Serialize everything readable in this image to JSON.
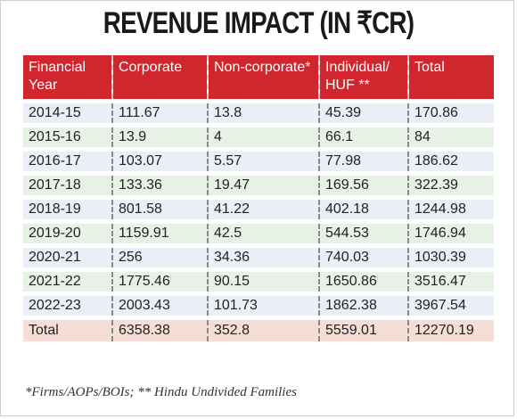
{
  "title": "REVENUE IMPACT (IN ₹CR)",
  "headers": [
    "Financial Year",
    "Corporate",
    "Non-corporate*",
    "Individual/ HUF **",
    "Total"
  ],
  "rows": [
    [
      "2014-15",
      "111.67",
      "13.8",
      "45.39",
      "170.86"
    ],
    [
      "2015-16",
      "13.9",
      "4",
      "66.1",
      "84"
    ],
    [
      "2016-17",
      "103.07",
      "5.57",
      "77.98",
      "186.62"
    ],
    [
      "2017-18",
      "133.36",
      "19.47",
      "169.56",
      "322.39"
    ],
    [
      "2018-19",
      "801.58",
      "41.22",
      "402.18",
      "1244.98"
    ],
    [
      "2019-20",
      "1159.91",
      "42.5",
      "544.53",
      "1746.94"
    ],
    [
      "2020-21",
      "256",
      "34.36",
      "740.03",
      "1030.39"
    ],
    [
      "2021-22",
      "1775.46",
      "90.15",
      "1650.86",
      "3516.47"
    ],
    [
      "2022-23",
      "2003.43",
      "101.73",
      "1862.38",
      "3967.54"
    ]
  ],
  "total_row": [
    "Total",
    "6358.38",
    "352.8",
    "5559.01",
    "12270.19"
  ],
  "footnote": "*Firms/AOPs/BOIs; ** Hindu Undivided Families",
  "colors": {
    "header_bg": "#d2262f",
    "row_blue": "#e9eef7",
    "row_green": "#e8f1e6",
    "row_total": "#f6ddd6"
  }
}
